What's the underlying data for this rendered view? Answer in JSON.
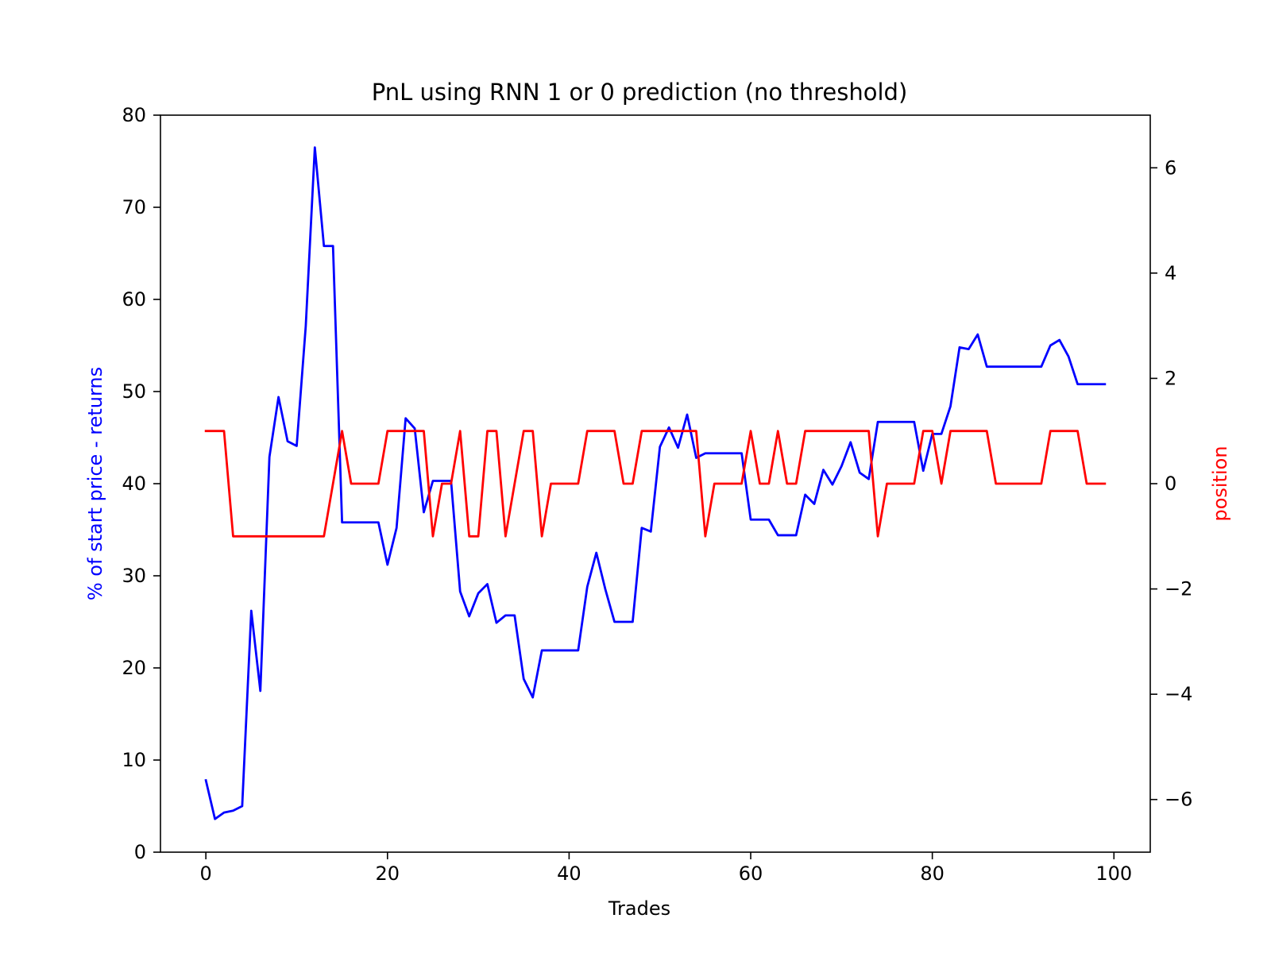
{
  "chart_data": {
    "type": "line",
    "title": "PnL using RNN 1 or 0 prediction (no threshold)",
    "xlabel": "Trades",
    "ylabel_left": "% of start price - returns",
    "ylabel_right": "position",
    "xlim": [
      -5,
      104
    ],
    "ylim_left": [
      0,
      80
    ],
    "ylim_right": [
      -7,
      7
    ],
    "xticks": [
      0,
      20,
      40,
      60,
      80,
      100
    ],
    "yticks_left": [
      0,
      10,
      20,
      30,
      40,
      50,
      60,
      70,
      80
    ],
    "yticks_right": [
      -6,
      -4,
      -2,
      0,
      2,
      4,
      6
    ],
    "grid": false,
    "colors": {
      "left_axis_label": "#0000ff",
      "right_axis_label": "#ff0000"
    },
    "series": [
      {
        "color": "#0000ff",
        "axis": "left",
        "x": [
          0,
          1,
          2,
          3,
          4,
          5,
          6,
          7,
          8,
          9,
          10,
          11,
          12,
          13,
          14,
          15,
          16,
          17,
          18,
          19,
          20,
          21,
          22,
          23,
          24,
          25,
          26,
          27,
          28,
          29,
          30,
          31,
          32,
          33,
          34,
          35,
          36,
          37,
          38,
          39,
          40,
          41,
          42,
          43,
          44,
          45,
          46,
          47,
          48,
          49,
          50,
          51,
          52,
          53,
          54,
          55,
          56,
          57,
          58,
          59,
          60,
          61,
          62,
          63,
          64,
          65,
          66,
          67,
          68,
          69,
          70,
          71,
          72,
          73,
          74,
          75,
          76,
          77,
          78,
          79,
          80,
          81,
          82,
          83,
          84,
          85,
          86,
          87,
          88,
          89,
          90,
          91,
          92,
          93,
          94,
          95,
          96,
          97,
          98,
          99
        ],
        "y": [
          7.8,
          3.6,
          4.3,
          4.5,
          5.0,
          26.2,
          17.5,
          42.9,
          49.4,
          44.6,
          44.1,
          57.1,
          76.5,
          65.8,
          65.8,
          35.8,
          35.8,
          35.8,
          35.8,
          35.8,
          31.2,
          35.2,
          47.1,
          46.0,
          36.9,
          40.3,
          40.3,
          40.3,
          28.3,
          25.6,
          28.1,
          29.1,
          24.9,
          25.7,
          25.7,
          18.8,
          16.8,
          21.9,
          21.9,
          21.9,
          21.9,
          21.9,
          28.8,
          32.5,
          28.5,
          25.0,
          25.0,
          25.0,
          35.2,
          34.8,
          44.0,
          46.1,
          43.9,
          47.5,
          42.8,
          43.3,
          43.3,
          43.3,
          43.3,
          43.3,
          36.1,
          36.1,
          36.1,
          34.4,
          34.4,
          34.4,
          38.8,
          37.8,
          41.5,
          39.9,
          41.9,
          44.5,
          41.2,
          40.5,
          46.7,
          46.7,
          46.7,
          46.7,
          46.7,
          41.4,
          45.4,
          45.4,
          48.4,
          54.8,
          54.6,
          56.2,
          52.7,
          52.7,
          52.7,
          52.7,
          52.7,
          52.7,
          52.7,
          55.0,
          55.6,
          53.8,
          50.8,
          50.8,
          50.8,
          50.8
        ]
      },
      {
        "color": "#ff0000",
        "axis": "right",
        "x": [
          0,
          1,
          2,
          3,
          4,
          5,
          6,
          7,
          8,
          9,
          10,
          11,
          12,
          13,
          14,
          15,
          16,
          17,
          18,
          19,
          20,
          21,
          22,
          23,
          24,
          25,
          26,
          27,
          28,
          29,
          30,
          31,
          32,
          33,
          34,
          35,
          36,
          37,
          38,
          39,
          40,
          41,
          42,
          43,
          44,
          45,
          46,
          47,
          48,
          49,
          50,
          51,
          52,
          53,
          54,
          55,
          56,
          57,
          58,
          59,
          60,
          61,
          62,
          63,
          64,
          65,
          66,
          67,
          68,
          69,
          70,
          71,
          72,
          73,
          74,
          75,
          76,
          77,
          78,
          79,
          80,
          81,
          82,
          83,
          84,
          85,
          86,
          87,
          88,
          89,
          90,
          91,
          92,
          93,
          94,
          95,
          96,
          97,
          98,
          99
        ],
        "y": [
          1,
          1,
          1,
          -1,
          -1,
          -1,
          -1,
          -1,
          -1,
          -1,
          -1,
          -1,
          -1,
          -1,
          0,
          1,
          0,
          0,
          0,
          0,
          1,
          1,
          1,
          1,
          1,
          -1,
          0,
          0,
          1,
          -1,
          -1,
          1,
          1,
          -1,
          0,
          1,
          1,
          -1,
          0,
          0,
          0,
          0,
          1,
          1,
          1,
          1,
          0,
          0,
          1,
          1,
          1,
          1,
          1,
          1,
          1,
          -1,
          0,
          0,
          0,
          0,
          1,
          0,
          0,
          1,
          0,
          0,
          1,
          1,
          1,
          1,
          1,
          1,
          1,
          1,
          -1,
          0,
          0,
          0,
          0,
          1,
          1,
          0,
          1,
          1,
          1,
          1,
          1,
          0,
          0,
          0,
          0,
          0,
          0,
          1,
          1,
          1,
          1,
          0,
          0,
          0
        ]
      }
    ]
  }
}
